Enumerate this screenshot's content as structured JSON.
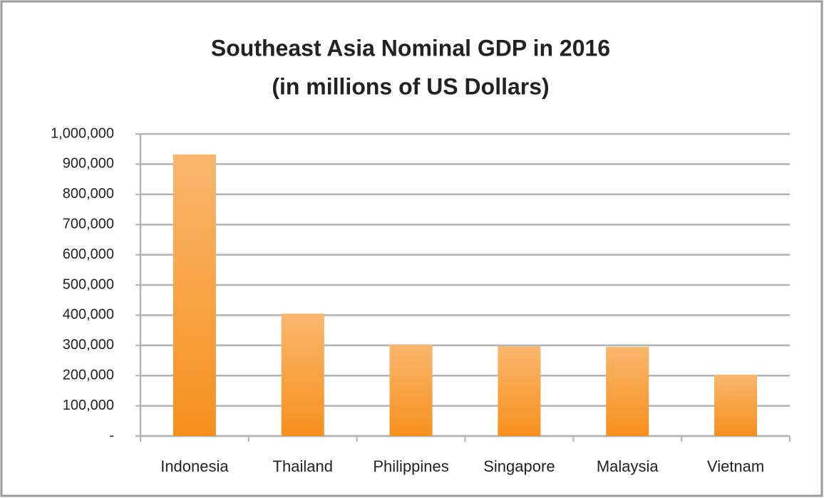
{
  "chart_data": {
    "type": "bar",
    "title": "Southeast Asia Nominal GDP in 2016",
    "subtitle": "(in millions of US Dollars)",
    "categories": [
      "Indonesia",
      "Thailand",
      "Philippines",
      "Singapore",
      "Malaysia",
      "Vietnam"
    ],
    "values": [
      932000,
      405000,
      302000,
      297000,
      295000,
      203000
    ],
    "color": "#f7901e",
    "ylim": [
      0,
      1000000
    ],
    "yticks": [
      {
        "value": 0,
        "label": "-"
      },
      {
        "value": 100000,
        "label": "100,000"
      },
      {
        "value": 200000,
        "label": "200,000"
      },
      {
        "value": 300000,
        "label": "300,000"
      },
      {
        "value": 400000,
        "label": "400,000"
      },
      {
        "value": 500000,
        "label": "500,000"
      },
      {
        "value": 600000,
        "label": "600,000"
      },
      {
        "value": 700000,
        "label": "700,000"
      },
      {
        "value": 800000,
        "label": "800,000"
      },
      {
        "value": 900000,
        "label": "900,000"
      },
      {
        "value": 1000000,
        "label": "1,000,000"
      }
    ],
    "grid": true
  }
}
